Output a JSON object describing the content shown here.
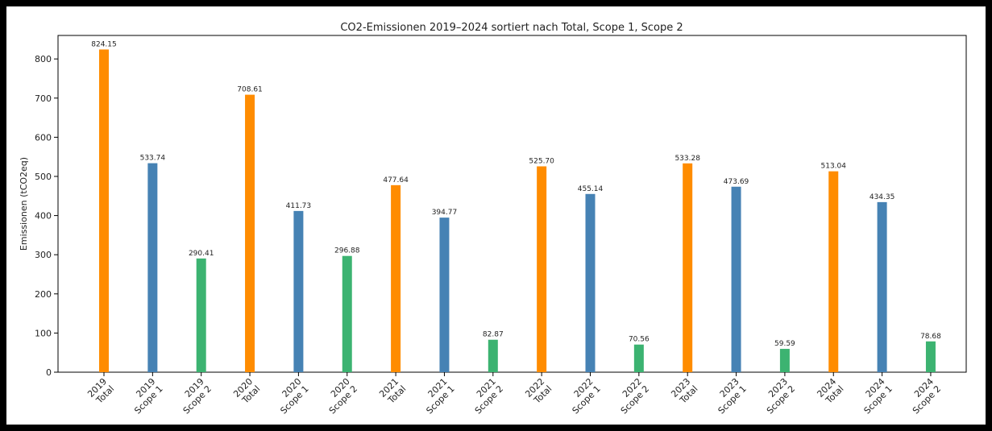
{
  "chart_data": {
    "type": "bar",
    "title": "CO2-Emissionen 2019–2024 sortiert nach Total, Scope 1, Scope 2",
    "xlabel": "",
    "ylabel": "Emissionen (tCO2eq)",
    "ylim": [
      0,
      860
    ],
    "yticks": [
      0,
      100,
      200,
      300,
      400,
      500,
      600,
      700,
      800
    ],
    "grid": false,
    "legend": "none",
    "colors": {
      "Total": "#ff8c00",
      "Scope 1": "#4682b4",
      "Scope 2": "#3cb371"
    },
    "categories": [
      "2019\nTotal",
      "2019\nScope 1",
      "2019\nScope 2",
      "2020\nTotal",
      "2020\nScope 1",
      "2020\nScope 2",
      "2021\nTotal",
      "2021\nScope 1",
      "2021\nScope 2",
      "2022\nTotal",
      "2022\nScope 1",
      "2022\nScope 2",
      "2023\nTotal",
      "2023\nScope 1",
      "2023\nScope 2",
      "2024\nTotal",
      "2024\nScope 1",
      "2024\nScope 2"
    ],
    "kinds": [
      "Total",
      "Scope 1",
      "Scope 2",
      "Total",
      "Scope 1",
      "Scope 2",
      "Total",
      "Scope 1",
      "Scope 2",
      "Total",
      "Scope 1",
      "Scope 2",
      "Total",
      "Scope 1",
      "Scope 2",
      "Total",
      "Scope 1",
      "Scope 2"
    ],
    "values": [
      824.15,
      533.74,
      290.41,
      708.61,
      411.73,
      296.88,
      477.64,
      394.77,
      82.87,
      525.7,
      455.14,
      70.56,
      533.28,
      473.69,
      59.59,
      513.04,
      434.35,
      78.68
    ],
    "data_labels": [
      "824.15",
      "533.74",
      "290.41",
      "708.61",
      "411.73",
      "296.88",
      "477.64",
      "394.77",
      "82.87",
      "525.70",
      "455.14",
      "70.56",
      "533.28",
      "473.69",
      "59.59",
      "513.04",
      "434.35",
      "78.68"
    ]
  }
}
